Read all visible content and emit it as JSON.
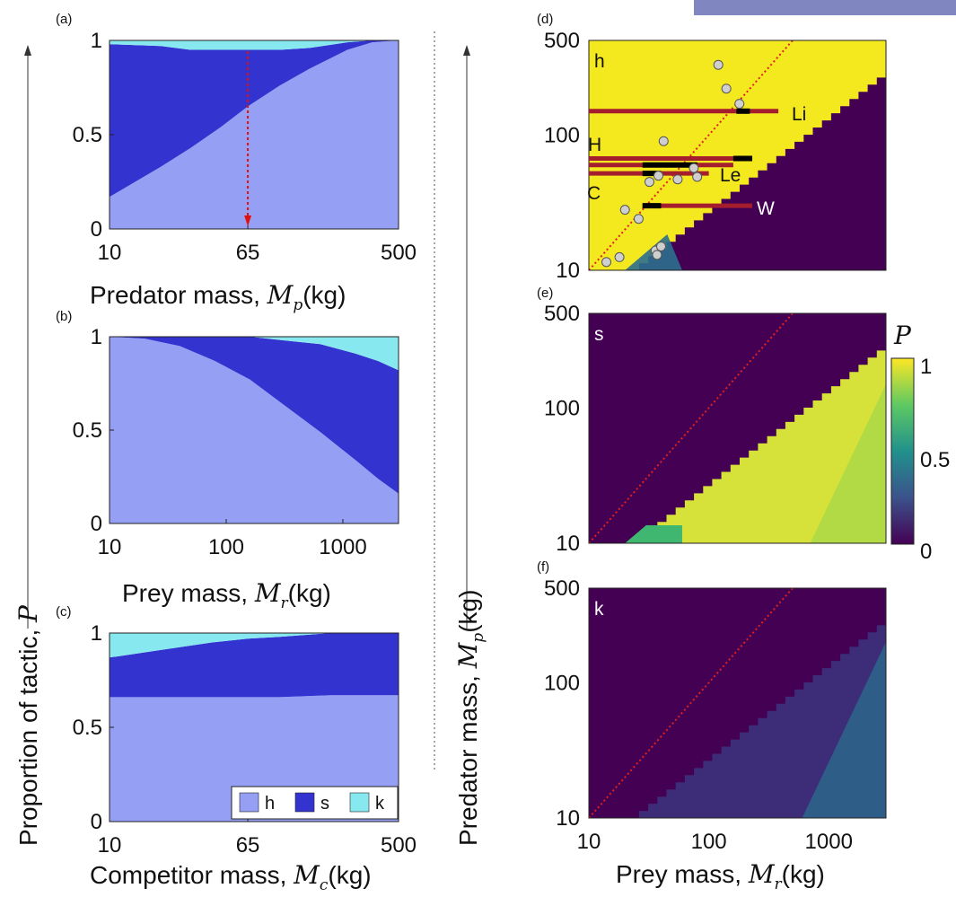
{
  "colors": {
    "h": "#95a0f4",
    "s": "#3333d0",
    "k": "#88e8f0",
    "arrow": "#e01010",
    "bar": "#a51e2e",
    "cb_low": "#440154",
    "cb_mid": "#21908c",
    "cb_high": "#fde725"
  },
  "left_ylabel": {
    "text": "Proportion of tactic, ",
    "var": "P"
  },
  "right_ylabel": {
    "text": "Predator mass, ",
    "var": "M",
    "sub": "p",
    "unit": "(kg)"
  },
  "colorbar": {
    "label": "P",
    "ticks": [
      "1",
      "0.5",
      "0"
    ]
  },
  "legend": [
    "h",
    "s",
    "k"
  ],
  "chart_data": [
    {
      "panel": "(a)",
      "type": "area",
      "xlabel": {
        "text": "Predator mass, ",
        "var": "M",
        "sub": "p",
        "unit": "(kg)"
      },
      "xticks": [
        "10",
        "65",
        "500"
      ],
      "yticks": [
        "0",
        "0.5",
        "1"
      ],
      "x": [
        10,
        20,
        30,
        45,
        65,
        100,
        150,
        250,
        350,
        500
      ],
      "series": [
        {
          "name": "h",
          "values": [
            0.17,
            0.33,
            0.43,
            0.54,
            0.65,
            0.76,
            0.85,
            0.95,
            0.99,
            1.0
          ]
        },
        {
          "name": "s",
          "values": [
            0.81,
            0.64,
            0.52,
            0.41,
            0.3,
            0.19,
            0.11,
            0.04,
            0.01,
            0.0
          ]
        },
        {
          "name": "k",
          "values": [
            0.02,
            0.03,
            0.05,
            0.05,
            0.05,
            0.05,
            0.04,
            0.01,
            0.0,
            0.0
          ]
        }
      ]
    },
    {
      "panel": "(b)",
      "type": "area",
      "xlabel": {
        "text": "Prey mass, ",
        "var": "M",
        "sub": "r",
        "unit": "(kg)"
      },
      "xticks": [
        "10",
        "100",
        "1000"
      ],
      "yticks": [
        "0",
        "0.5",
        "1"
      ],
      "x": [
        10,
        20,
        40,
        80,
        160,
        320,
        640,
        1280,
        2000,
        3000
      ],
      "series": [
        {
          "name": "h",
          "values": [
            1.0,
            0.99,
            0.95,
            0.87,
            0.77,
            0.63,
            0.49,
            0.34,
            0.24,
            0.16
          ]
        },
        {
          "name": "s",
          "values": [
            0.0,
            0.01,
            0.05,
            0.13,
            0.23,
            0.35,
            0.47,
            0.57,
            0.63,
            0.66
          ]
        },
        {
          "name": "k",
          "values": [
            0.0,
            0.0,
            0.0,
            0.0,
            0.0,
            0.02,
            0.04,
            0.09,
            0.13,
            0.18
          ]
        }
      ]
    },
    {
      "panel": "(c)",
      "type": "area",
      "xlabel": {
        "text": "Competitor mass, ",
        "var": "M",
        "sub": "c",
        "unit": "(kg)"
      },
      "xticks": [
        "10",
        "65",
        "500"
      ],
      "yticks": [
        "0",
        "0.5",
        "1"
      ],
      "x": [
        10,
        20,
        40,
        65,
        100,
        200,
        350,
        500
      ],
      "series": [
        {
          "name": "h",
          "values": [
            0.66,
            0.66,
            0.66,
            0.66,
            0.66,
            0.67,
            0.67,
            0.67
          ]
        },
        {
          "name": "s",
          "values": [
            0.21,
            0.25,
            0.29,
            0.31,
            0.32,
            0.33,
            0.33,
            0.33
          ]
        },
        {
          "name": "k",
          "values": [
            0.13,
            0.09,
            0.05,
            0.03,
            0.02,
            0.0,
            0.0,
            0.0
          ]
        }
      ]
    },
    {
      "panel": "(d)",
      "type": "heatmap",
      "tactic": "h",
      "xlim": [
        10,
        3000
      ],
      "ylim": [
        10,
        500
      ],
      "yticks": [
        "10",
        "100",
        "500"
      ],
      "points": [
        [
          14,
          11.5
        ],
        [
          18,
          12.5
        ],
        [
          20,
          28
        ],
        [
          26,
          24
        ],
        [
          32,
          45
        ],
        [
          36,
          14
        ],
        [
          37,
          13
        ],
        [
          38,
          50
        ],
        [
          40,
          15
        ],
        [
          42,
          90
        ],
        [
          55,
          47
        ],
        [
          75,
          57
        ],
        [
          80,
          49
        ],
        [
          120,
          330
        ],
        [
          140,
          220
        ],
        [
          180,
          170
        ]
      ],
      "bars": [
        {
          "label": "H",
          "x": [
            10,
            230
          ],
          "y": 67,
          "black": [
            160,
            230
          ]
        },
        {
          "label": "",
          "x": [
            10,
            160
          ],
          "y": 60,
          "black": [
            28,
            80
          ]
        },
        {
          "label": "Le",
          "x": [
            10,
            100
          ],
          "y": 52,
          "black": [
            28,
            40
          ]
        },
        {
          "label": "Li",
          "x": [
            10,
            380
          ],
          "y": 150,
          "black": [
            170,
            220
          ]
        },
        {
          "label": "W",
          "x": [
            28,
            230
          ],
          "y": 30,
          "black": [
            28,
            40
          ]
        },
        {
          "label": "C",
          "x": null,
          "y": null,
          "black": null
        }
      ]
    },
    {
      "panel": "(e)",
      "type": "heatmap",
      "tactic": "s",
      "xlim": [
        10,
        3000
      ],
      "ylim": [
        10,
        500
      ],
      "yticks": [
        "10",
        "100",
        "500"
      ]
    },
    {
      "panel": "(f)",
      "type": "heatmap",
      "tactic": "k",
      "xlim": [
        10,
        3000
      ],
      "ylim": [
        10,
        500
      ],
      "yticks": [
        "10",
        "100",
        "500"
      ],
      "xticks": [
        "10",
        "100",
        "1000"
      ],
      "xlabel": {
        "text": "Prey mass, ",
        "var": "M",
        "sub": "r",
        "unit": "(kg)"
      }
    }
  ]
}
